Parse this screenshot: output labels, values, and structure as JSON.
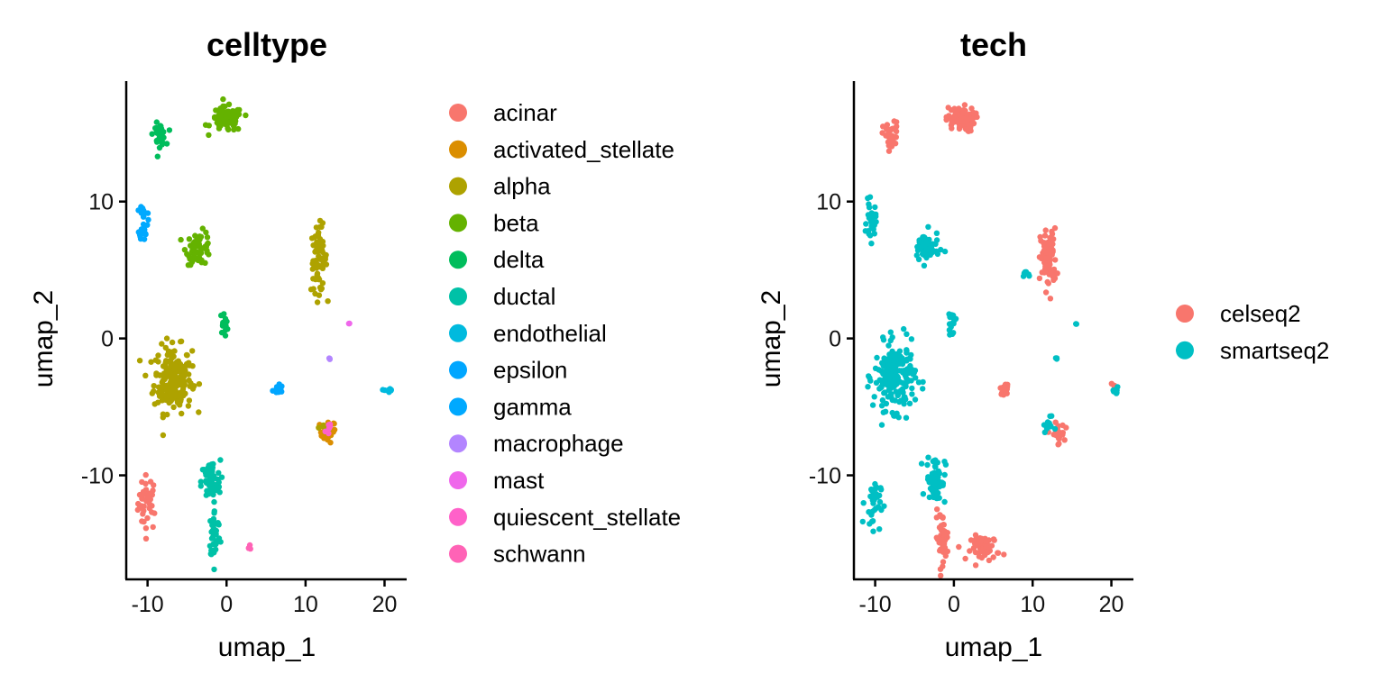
{
  "chart_data": [
    {
      "type": "scatter",
      "title": "celltype",
      "xlabel": "umap_1",
      "ylabel": "umap_2",
      "xlim": [
        -12.7,
        22.8
      ],
      "ylim": [
        -17.6,
        18.8
      ],
      "xticks": [
        -10,
        0,
        10,
        20
      ],
      "yticks": [
        -10,
        0,
        10
      ],
      "grid": false,
      "legend_position": "right",
      "series": [
        {
          "name": "acinar",
          "color": "#F8766D",
          "clusters": [
            {
              "x": -10.0,
              "y": -12.0,
              "sx": 0.6,
              "sy": 1.0,
              "n": 40
            }
          ]
        },
        {
          "name": "activated_stellate",
          "color": "#DB8E00",
          "clusters": [
            {
              "x": 12.8,
              "y": -6.8,
              "sx": 0.5,
              "sy": 0.4,
              "n": 30
            }
          ]
        },
        {
          "name": "alpha",
          "color": "#AEA200",
          "clusters": [
            {
              "x": -6.8,
              "y": -3.0,
              "sx": 1.2,
              "sy": 1.2,
              "n": 200
            },
            {
              "x": 11.7,
              "y": 5.8,
              "sx": 0.5,
              "sy": 1.2,
              "n": 80
            },
            {
              "x": 12.5,
              "y": -6.5,
              "sx": 0.4,
              "sy": 0.3,
              "n": 12
            }
          ]
        },
        {
          "name": "beta",
          "color": "#64B200",
          "clusters": [
            {
              "x": 0.0,
              "y": 16.0,
              "sx": 1.0,
              "sy": 0.45,
              "n": 90
            },
            {
              "x": -3.5,
              "y": 6.6,
              "sx": 0.8,
              "sy": 0.6,
              "n": 60
            }
          ]
        },
        {
          "name": "delta",
          "color": "#00BD5C",
          "clusters": [
            {
              "x": -8.5,
              "y": 14.9,
              "sx": 0.4,
              "sy": 0.4,
              "n": 35
            },
            {
              "x": -0.3,
              "y": 1.1,
              "sx": 0.25,
              "sy": 0.4,
              "n": 15
            }
          ]
        },
        {
          "name": "ductal",
          "color": "#00C1A7",
          "clusters": [
            {
              "x": -2.0,
              "y": -10.5,
              "sx": 0.6,
              "sy": 0.8,
              "n": 70
            },
            {
              "x": -1.5,
              "y": -14.3,
              "sx": 0.35,
              "sy": 0.9,
              "n": 45
            }
          ]
        },
        {
          "name": "endothelial",
          "color": "#00BADE",
          "clusters": [
            {
              "x": 20.5,
              "y": -3.8,
              "sx": 0.25,
              "sy": 0.2,
              "n": 10
            }
          ]
        },
        {
          "name": "epsilon",
          "color": "#00A6FF",
          "clusters": [
            {
              "x": 6.5,
              "y": -3.7,
              "sx": 0.3,
              "sy": 0.2,
              "n": 15
            }
          ]
        },
        {
          "name": "gamma",
          "color": "#00A9FF",
          "clusters": [
            {
              "x": -10.5,
              "y": 8.6,
              "sx": 0.25,
              "sy": 0.7,
              "n": 30
            }
          ]
        },
        {
          "name": "macrophage",
          "color": "#B385FF",
          "clusters": [
            {
              "x": 13.0,
              "y": -1.5,
              "sx": 0.05,
              "sy": 0.05,
              "n": 3
            }
          ]
        },
        {
          "name": "mast",
          "color": "#EF67EB",
          "clusters": [
            {
              "x": 15.5,
              "y": 1.1,
              "sx": 0.05,
              "sy": 0.05,
              "n": 2
            }
          ]
        },
        {
          "name": "quiescent_stellate",
          "color": "#FF61C9",
          "clusters": [
            {
              "x": 12.8,
              "y": -6.6,
              "sx": 0.3,
              "sy": 0.3,
              "n": 6
            }
          ]
        },
        {
          "name": "schwann",
          "color": "#FF63B6",
          "clusters": [
            {
              "x": 3.0,
              "y": -15.3,
              "sx": 0.3,
              "sy": 0.2,
              "n": 4
            }
          ]
        }
      ]
    },
    {
      "type": "scatter",
      "title": "tech",
      "xlabel": "umap_1",
      "ylabel": "umap_2",
      "xlim": [
        -12.7,
        22.8
      ],
      "ylim": [
        -17.6,
        18.8
      ],
      "xticks": [
        -10,
        0,
        10,
        20
      ],
      "yticks": [
        -10,
        0,
        10
      ],
      "grid": false,
      "legend_position": "right",
      "series": [
        {
          "name": "celseq2",
          "color": "#F8766D",
          "clusters": [
            {
              "x": 0.8,
              "y": 16.0,
              "sx": 0.9,
              "sy": 0.45,
              "n": 80
            },
            {
              "x": -8.0,
              "y": 14.8,
              "sx": 0.5,
              "sy": 0.5,
              "n": 40
            },
            {
              "x": 12.0,
              "y": 5.8,
              "sx": 0.5,
              "sy": 1.1,
              "n": 80
            },
            {
              "x": 6.5,
              "y": -3.7,
              "sx": 0.3,
              "sy": 0.2,
              "n": 15
            },
            {
              "x": 13.2,
              "y": -7.0,
              "sx": 0.4,
              "sy": 0.4,
              "n": 25
            },
            {
              "x": -1.5,
              "y": -14.5,
              "sx": 0.4,
              "sy": 0.9,
              "n": 45
            },
            {
              "x": 4.0,
              "y": -15.3,
              "sx": 0.9,
              "sy": 0.45,
              "n": 60
            },
            {
              "x": 20.2,
              "y": -3.4,
              "sx": 0.1,
              "sy": 0.1,
              "n": 3
            }
          ]
        },
        {
          "name": "smartseq2",
          "color": "#00BFC4",
          "clusters": [
            {
              "x": -7.5,
              "y": -2.8,
              "sx": 1.3,
              "sy": 1.2,
              "n": 200
            },
            {
              "x": -3.5,
              "y": 6.6,
              "sx": 0.8,
              "sy": 0.6,
              "n": 60
            },
            {
              "x": -10.5,
              "y": 8.5,
              "sx": 0.3,
              "sy": 0.7,
              "n": 30
            },
            {
              "x": -0.3,
              "y": 1.1,
              "sx": 0.25,
              "sy": 0.4,
              "n": 15
            },
            {
              "x": -2.3,
              "y": -10.3,
              "sx": 0.6,
              "sy": 0.9,
              "n": 70
            },
            {
              "x": -10.3,
              "y": -12.0,
              "sx": 0.5,
              "sy": 0.9,
              "n": 35
            },
            {
              "x": 20.5,
              "y": -3.8,
              "sx": 0.25,
              "sy": 0.2,
              "n": 10
            },
            {
              "x": 12.0,
              "y": -6.3,
              "sx": 0.3,
              "sy": 0.3,
              "n": 12
            },
            {
              "x": 13.0,
              "y": -1.5,
              "sx": 0.05,
              "sy": 0.05,
              "n": 3
            },
            {
              "x": 15.5,
              "y": 1.1,
              "sx": 0.05,
              "sy": 0.05,
              "n": 2
            },
            {
              "x": 9.0,
              "y": 4.5,
              "sx": 0.3,
              "sy": 0.2,
              "n": 6
            }
          ]
        }
      ]
    }
  ]
}
